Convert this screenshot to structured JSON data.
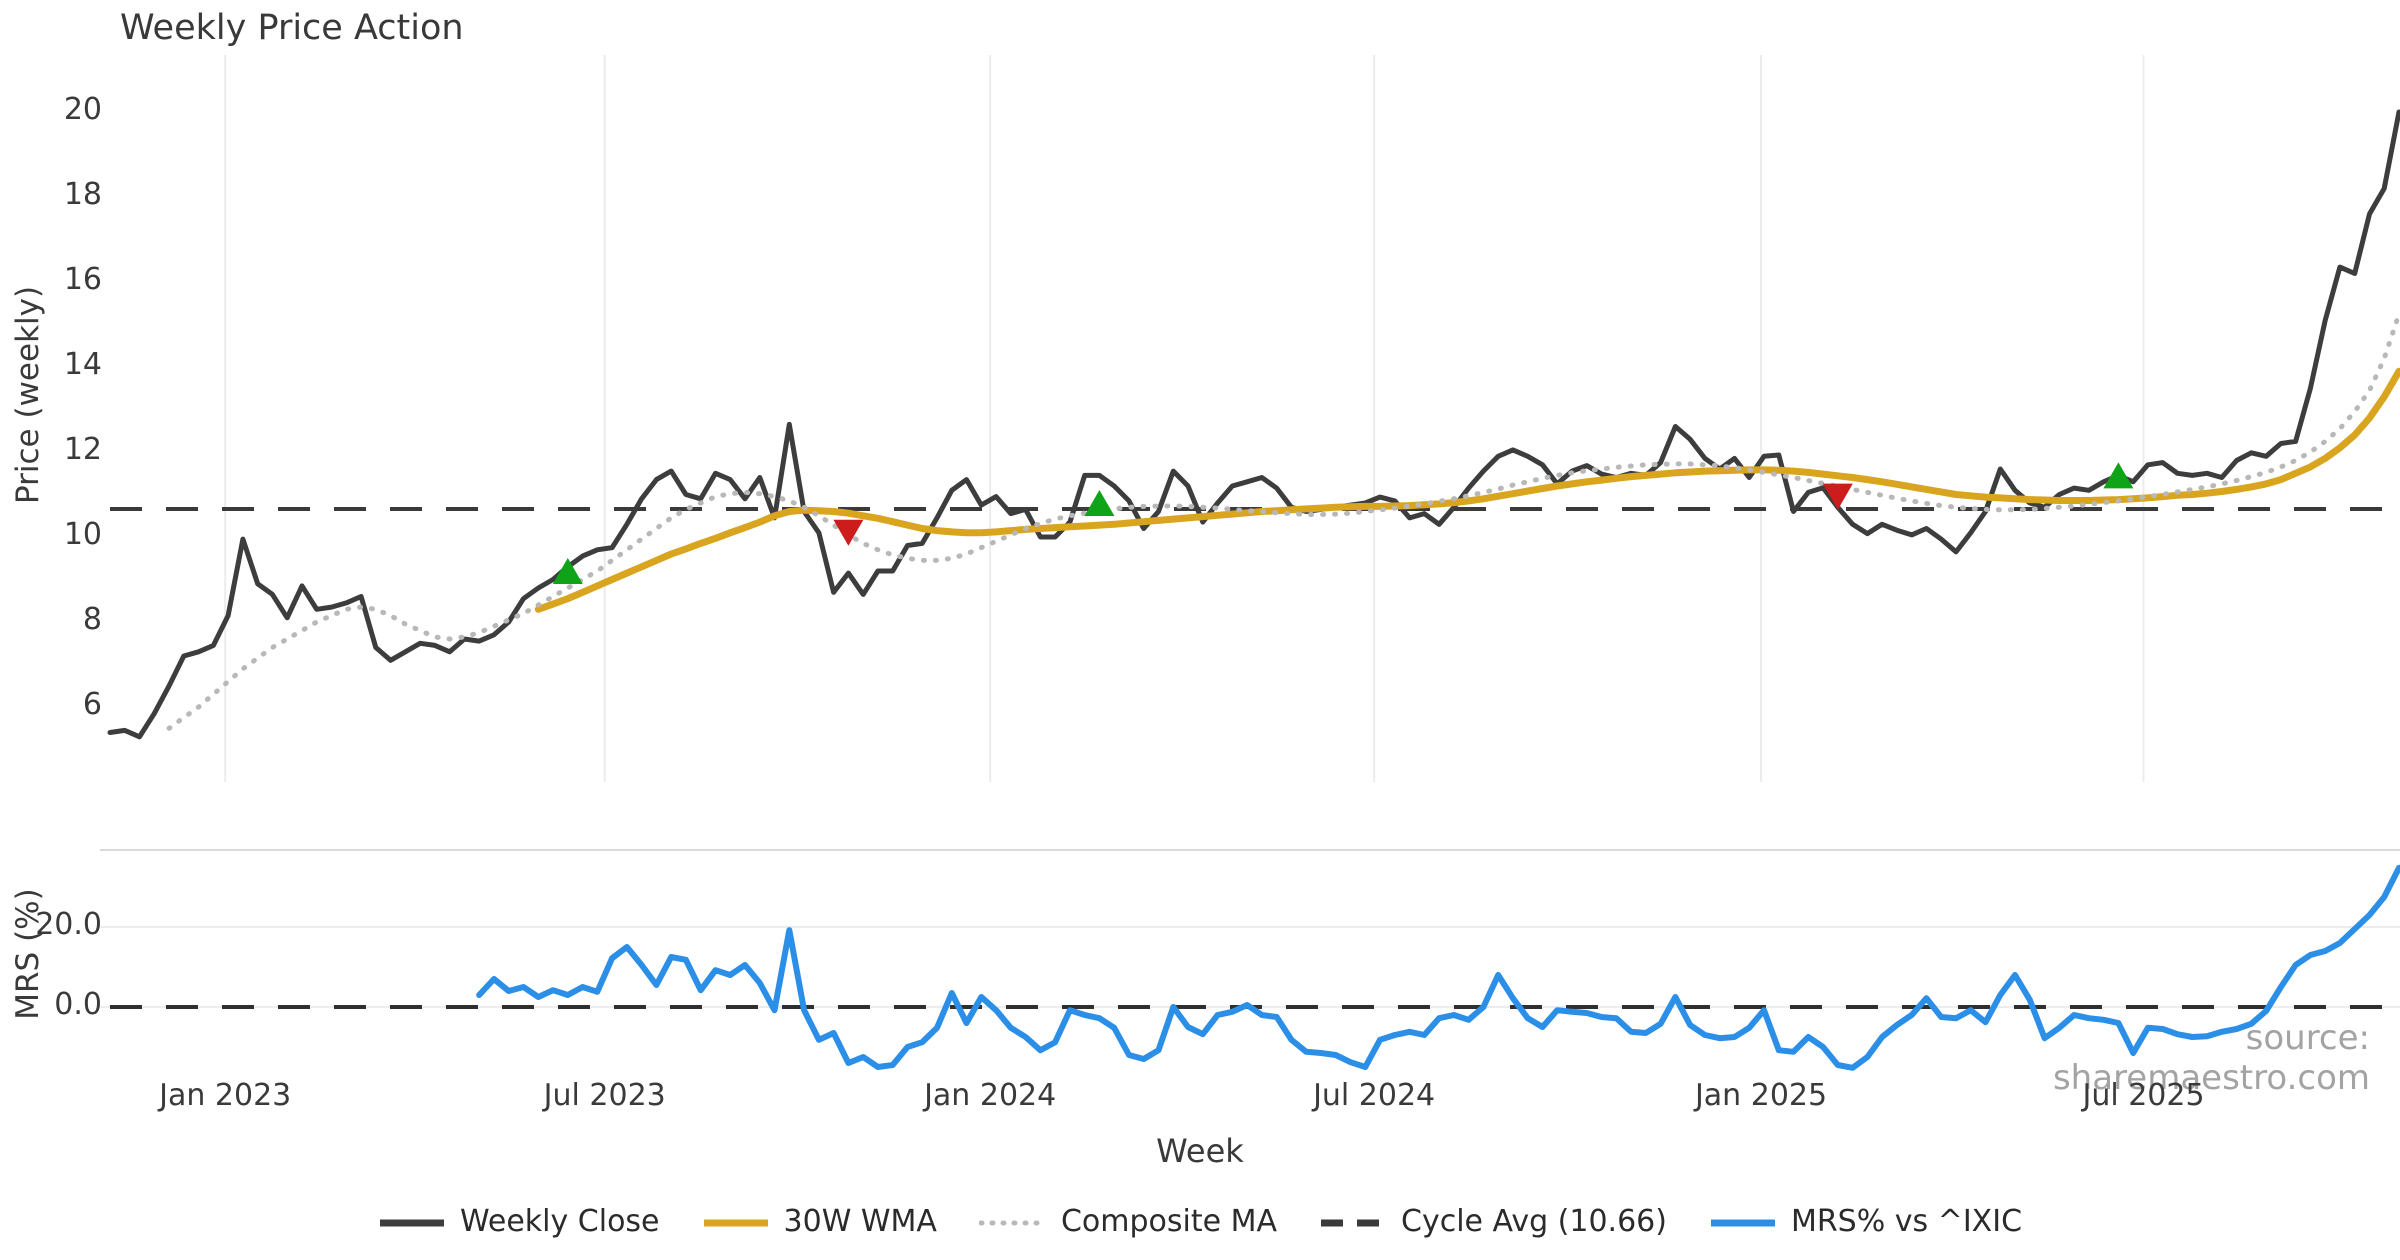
{
  "chart_data": {
    "type": "line",
    "title": "Weekly Price Action",
    "xlabel": "Week",
    "watermark": "source: sharemaestro.com",
    "top_panel": {
      "ylabel": "Price (weekly)",
      "yticks": [
        20,
        18,
        16,
        14,
        12,
        10,
        8,
        6
      ],
      "ylim": [
        4.8,
        20.9
      ],
      "cycle_avg": 10.66
    },
    "bottom_panel": {
      "ylabel": "MRS (%)",
      "yticks": [
        20.0,
        0.0
      ],
      "ytick_labels": [
        "20.0",
        "0.0"
      ],
      "ylim": [
        -18,
        39
      ],
      "zero_line": 0.0
    },
    "x_axis": {
      "tick_weeks": [
        7.8,
        33.5,
        59.6,
        85.6,
        111.8,
        137.7
      ],
      "tick_labels": [
        "Jan 2023",
        "Jul 2023",
        "Jan 2024",
        "Jul 2024",
        "Jan 2025",
        "Jul 2025"
      ],
      "total_weeks": 155
    },
    "series": [
      {
        "name": "Weekly Close",
        "panel": "top",
        "style": "solid",
        "color": "#3d3d3d",
        "width": 5,
        "start_week": 0,
        "values": [
          5.4,
          5.45,
          5.3,
          5.85,
          6.5,
          7.2,
          7.3,
          7.45,
          8.15,
          9.95,
          8.9,
          8.65,
          8.1,
          8.85,
          8.3,
          8.35,
          8.45,
          8.6,
          7.4,
          7.1,
          7.3,
          7.5,
          7.45,
          7.3,
          7.6,
          7.55,
          7.7,
          8.0,
          8.55,
          8.8,
          9.0,
          9.3,
          9.55,
          9.7,
          9.75,
          10.3,
          10.9,
          11.35,
          11.55,
          11.0,
          10.9,
          11.5,
          11.35,
          10.9,
          11.4,
          10.45,
          12.65,
          10.6,
          10.1,
          8.7,
          9.15,
          8.65,
          9.2,
          9.2,
          9.8,
          9.85,
          10.45,
          11.1,
          11.35,
          10.75,
          10.95,
          10.55,
          10.65,
          10.0,
          10.0,
          10.35,
          11.45,
          11.45,
          11.2,
          10.85,
          10.2,
          10.6,
          11.55,
          11.2,
          10.35,
          10.8,
          11.2,
          11.3,
          11.4,
          11.15,
          10.7,
          10.6,
          10.65,
          10.7,
          10.75,
          10.8,
          10.94,
          10.85,
          10.45,
          10.55,
          10.3,
          10.7,
          11.15,
          11.55,
          11.9,
          12.05,
          11.9,
          11.7,
          11.25,
          11.55,
          11.68,
          11.48,
          11.4,
          11.5,
          11.45,
          11.75,
          12.6,
          12.3,
          11.85,
          11.6,
          11.85,
          11.4,
          11.9,
          11.93,
          10.6,
          11.05,
          11.16,
          10.7,
          10.3,
          10.08,
          10.3,
          10.16,
          10.05,
          10.2,
          9.95,
          9.65,
          10.1,
          10.6,
          11.6,
          11.1,
          10.8,
          10.7,
          11.0,
          11.15,
          11.1,
          11.3,
          11.45,
          11.3,
          11.7,
          11.75,
          11.5,
          11.45,
          11.5,
          11.4,
          11.8,
          11.98,
          11.9,
          12.2,
          12.25,
          13.5,
          15.1,
          16.35,
          16.2,
          17.6,
          18.2,
          20.0
        ]
      },
      {
        "name": "30W WMA",
        "panel": "top",
        "style": "solid",
        "color": "#d9a51f",
        "width": 7,
        "start_week": 29,
        "values": [
          8.3,
          8.42,
          8.55,
          8.7,
          8.85,
          9.0,
          9.15,
          9.3,
          9.45,
          9.6,
          9.72,
          9.85,
          9.97,
          10.1,
          10.22,
          10.35,
          10.5,
          10.6,
          10.63,
          10.62,
          10.6,
          10.56,
          10.5,
          10.44,
          10.36,
          10.28,
          10.2,
          10.15,
          10.12,
          10.1,
          10.1,
          10.12,
          10.15,
          10.18,
          10.2,
          10.22,
          10.24,
          10.26,
          10.28,
          10.3,
          10.33,
          10.36,
          10.39,
          10.42,
          10.45,
          10.48,
          10.51,
          10.54,
          10.57,
          10.6,
          10.62,
          10.64,
          10.66,
          10.68,
          10.7,
          10.71,
          10.72,
          10.72,
          10.73,
          10.74,
          10.76,
          10.78,
          10.81,
          10.85,
          10.9,
          10.96,
          11.02,
          11.08,
          11.14,
          11.2,
          11.25,
          11.3,
          11.34,
          11.38,
          11.42,
          11.45,
          11.48,
          11.51,
          11.53,
          11.55,
          11.56,
          11.57,
          11.58,
          11.58,
          11.57,
          11.55,
          11.52,
          11.48,
          11.44,
          11.4,
          11.35,
          11.3,
          11.24,
          11.18,
          11.12,
          11.06,
          11.0,
          10.97,
          10.94,
          10.92,
          10.9,
          10.88,
          10.87,
          10.86,
          10.86,
          10.86,
          10.87,
          10.88,
          10.9,
          10.92,
          10.95,
          10.98,
          11.0,
          11.03,
          11.07,
          11.12,
          11.18,
          11.25,
          11.35,
          11.5,
          11.65,
          11.85,
          12.1,
          12.4,
          12.8,
          13.3,
          13.9
        ]
      },
      {
        "name": "Composite MA",
        "panel": "top",
        "style": "dotted",
        "color": "#b8b8b8",
        "width": 5,
        "start_week": 4,
        "values": [
          5.5,
          5.75,
          6.0,
          6.3,
          6.6,
          6.9,
          7.15,
          7.4,
          7.6,
          7.8,
          8.0,
          8.15,
          8.3,
          8.35,
          8.3,
          8.15,
          7.95,
          7.8,
          7.65,
          7.6,
          7.65,
          7.75,
          7.9,
          8.05,
          8.2,
          8.4,
          8.6,
          8.8,
          9.0,
          9.2,
          9.45,
          9.7,
          9.95,
          10.2,
          10.45,
          10.65,
          10.8,
          10.95,
          11.02,
          11.05,
          11.02,
          10.95,
          10.85,
          10.7,
          10.5,
          10.28,
          10.05,
          9.85,
          9.7,
          9.58,
          9.5,
          9.45,
          9.45,
          9.5,
          9.6,
          9.75,
          9.9,
          10.05,
          10.2,
          10.32,
          10.42,
          10.5,
          10.56,
          10.62,
          10.66,
          10.7,
          10.72,
          10.73,
          10.73,
          10.72,
          10.7,
          10.68,
          10.65,
          10.62,
          10.6,
          10.57,
          10.55,
          10.53,
          10.53,
          10.54,
          10.56,
          10.6,
          10.64,
          10.68,
          10.73,
          10.78,
          10.84,
          10.9,
          10.97,
          11.05,
          11.13,
          11.22,
          11.3,
          11.38,
          11.45,
          11.51,
          11.56,
          11.6,
          11.64,
          11.67,
          11.7,
          11.71,
          11.72,
          11.72,
          11.7,
          11.67,
          11.63,
          11.58,
          11.52,
          11.46,
          11.4,
          11.33,
          11.26,
          11.19,
          11.12,
          11.05,
          10.98,
          10.91,
          10.85,
          10.79,
          10.74,
          10.7,
          10.67,
          10.65,
          10.64,
          10.64,
          10.65,
          10.67,
          10.7,
          10.73,
          10.77,
          10.81,
          10.85,
          10.9,
          10.95,
          11.0,
          11.06,
          11.12,
          11.18,
          11.25,
          11.33,
          11.42,
          11.52,
          11.65,
          11.8,
          12.0,
          12.25,
          12.55,
          12.95,
          13.45,
          14.2,
          15.25
        ]
      },
      {
        "name": "MRS% vs ^IXIC",
        "panel": "bottom",
        "style": "solid",
        "color": "#2b8fe8",
        "width": 6,
        "start_week": 25,
        "values": [
          3,
          7,
          4,
          5,
          2.5,
          4.2,
          3,
          5,
          3.8,
          12.2,
          15,
          10.5,
          5.5,
          12.5,
          11.8,
          4.2,
          9.2,
          8,
          10.5,
          6,
          -0.8,
          19.2,
          -0.8,
          -8.2,
          -6.5,
          -14,
          -12.5,
          -15,
          -14.5,
          -10,
          -8.8,
          -5.2,
          3.5,
          -4,
          2.5,
          -0.8,
          -5.2,
          -7.5,
          -10.8,
          -8.8,
          -0.8,
          -2,
          -2.8,
          -5.2,
          -12,
          -13,
          -10.8,
          0,
          -5,
          -6.8,
          -2,
          -1.2,
          0.5,
          -2,
          -2.5,
          -8.2,
          -11.2,
          -11.5,
          -12,
          -13.8,
          -15,
          -8.2,
          -7,
          -6.2,
          -7,
          -2.8,
          -2,
          -3.2,
          0,
          8,
          2.2,
          -2.8,
          -5,
          -0.8,
          -1.2,
          -1.5,
          -2.5,
          -2.8,
          -6.2,
          -6.5,
          -4.2,
          2.5,
          -4.5,
          -7,
          -7.8,
          -7.5,
          -5.2,
          -0.8,
          -10.8,
          -11.2,
          -7.5,
          -10,
          -14.5,
          -15.2,
          -12.5,
          -7.5,
          -4.5,
          -2,
          2.2,
          -2.5,
          -2.8,
          -0.8,
          -3.8,
          3,
          8,
          1.8,
          -7.8,
          -5.2,
          -2,
          -2.8,
          -3.2,
          -4,
          -11.5,
          -5.2,
          -5.5,
          -6.8,
          -7.5,
          -7.3,
          -6.2,
          -5.5,
          -4.2,
          -1,
          5,
          10.5,
          13,
          14,
          16,
          19.5,
          23,
          27.5,
          34.8
        ]
      }
    ],
    "markers": [
      {
        "type": "buy",
        "week": 31,
        "price": 9.2,
        "color": "#0fa317"
      },
      {
        "type": "sell",
        "week": 50,
        "price": 10.1,
        "color": "#cc1c1c"
      },
      {
        "type": "buy",
        "week": 67,
        "price": 10.8,
        "color": "#0fa317"
      },
      {
        "type": "sell",
        "week": 117,
        "price": 10.95,
        "color": "#cc1c1c"
      },
      {
        "type": "buy",
        "week": 136,
        "price": 11.45,
        "color": "#0fa317"
      }
    ],
    "legend": [
      {
        "label": "Weekly Close",
        "style": "solid",
        "color": "#3d3d3d"
      },
      {
        "label": "30W WMA",
        "style": "solid",
        "color": "#d9a51f"
      },
      {
        "label": "Composite MA",
        "style": "dotted",
        "color": "#b8b8b8"
      },
      {
        "label": "Cycle Avg (10.66)",
        "style": "dashed",
        "color": "#3a3a3a"
      },
      {
        "label": "MRS% vs ^IXIC",
        "style": "solid",
        "color": "#2b8fe8"
      }
    ],
    "colors": {
      "grid": "#ececec",
      "panel_spine": "#d9d9d9",
      "cycle_dash": "#3a3a3a",
      "zero_dash": "#2f2f2f",
      "text": "#3a3a3a",
      "watermark": "#9a9a9a"
    }
  }
}
